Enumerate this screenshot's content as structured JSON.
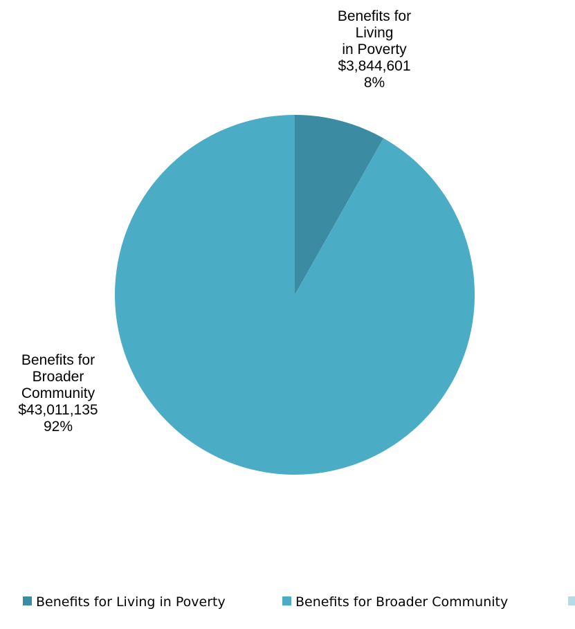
{
  "chart_data": {
    "type": "pie",
    "slices": [
      {
        "name": "Benefits for Living in Poverty",
        "value": 3844601,
        "percent": 8,
        "color": "#3b8ba3",
        "label_lines": [
          "Benefits for",
          "Living",
          "in Poverty",
          "$3,844,601",
          "8%"
        ]
      },
      {
        "name": "Benefits for Broader Community",
        "value": 43011135,
        "percent": 92,
        "color": "#4bacc6",
        "label_lines": [
          "Benefits for",
          "Broader",
          "Community",
          "$43,011,135",
          "92%"
        ]
      }
    ],
    "legend": {
      "position": "bottom",
      "entries": [
        {
          "label": "Benefits for Living in Poverty",
          "color": "#3b8ba3"
        },
        {
          "label": "Benefits for Broader Community",
          "color": "#4bacc6"
        },
        {
          "label": "",
          "color": "#b7dbe6"
        }
      ]
    }
  }
}
